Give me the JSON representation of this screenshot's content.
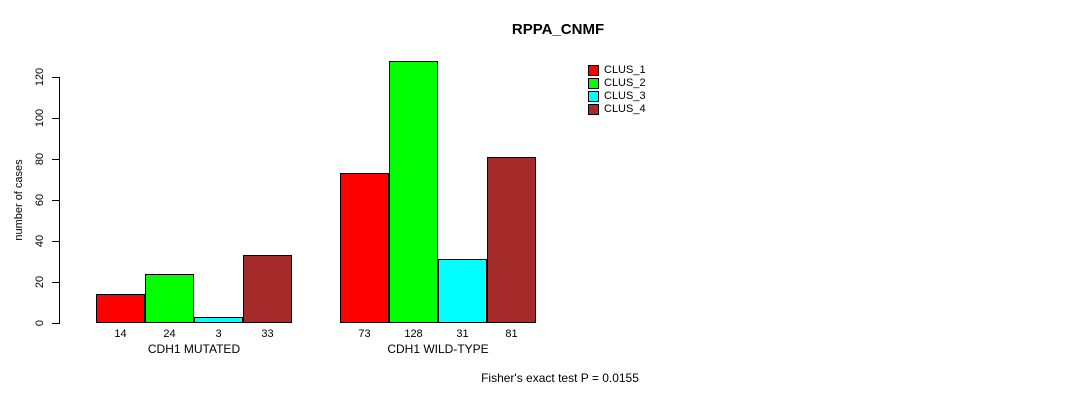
{
  "chart_data": {
    "type": "bar",
    "title": "RPPA_CNMF",
    "ylabel": "number of cases",
    "xlabel": "",
    "ylim": [
      0,
      120
    ],
    "yticks": [
      0,
      20,
      40,
      60,
      80,
      100,
      120
    ],
    "grid": false,
    "legend_position": "top-right",
    "categories": [
      "CDH1 MUTATED",
      "CDH1 WILD-TYPE"
    ],
    "series": [
      {
        "name": "CLUS_1",
        "color": "#ff0000",
        "values": [
          14,
          73
        ]
      },
      {
        "name": "CLUS_2",
        "color": "#00ff00",
        "values": [
          24,
          128
        ]
      },
      {
        "name": "CLUS_3",
        "color": "#00ffff",
        "values": [
          3,
          31
        ]
      },
      {
        "name": "CLUS_4",
        "color": "#a52a2a",
        "values": [
          33,
          81
        ]
      }
    ],
    "bar_value_labels": [
      [
        14,
        24,
        3,
        33
      ],
      [
        73,
        128,
        31,
        81
      ]
    ],
    "annotation": "Fisher's exact test P = 0.0155",
    "axis_color": "#000000",
    "background_color": "#ffffff"
  }
}
